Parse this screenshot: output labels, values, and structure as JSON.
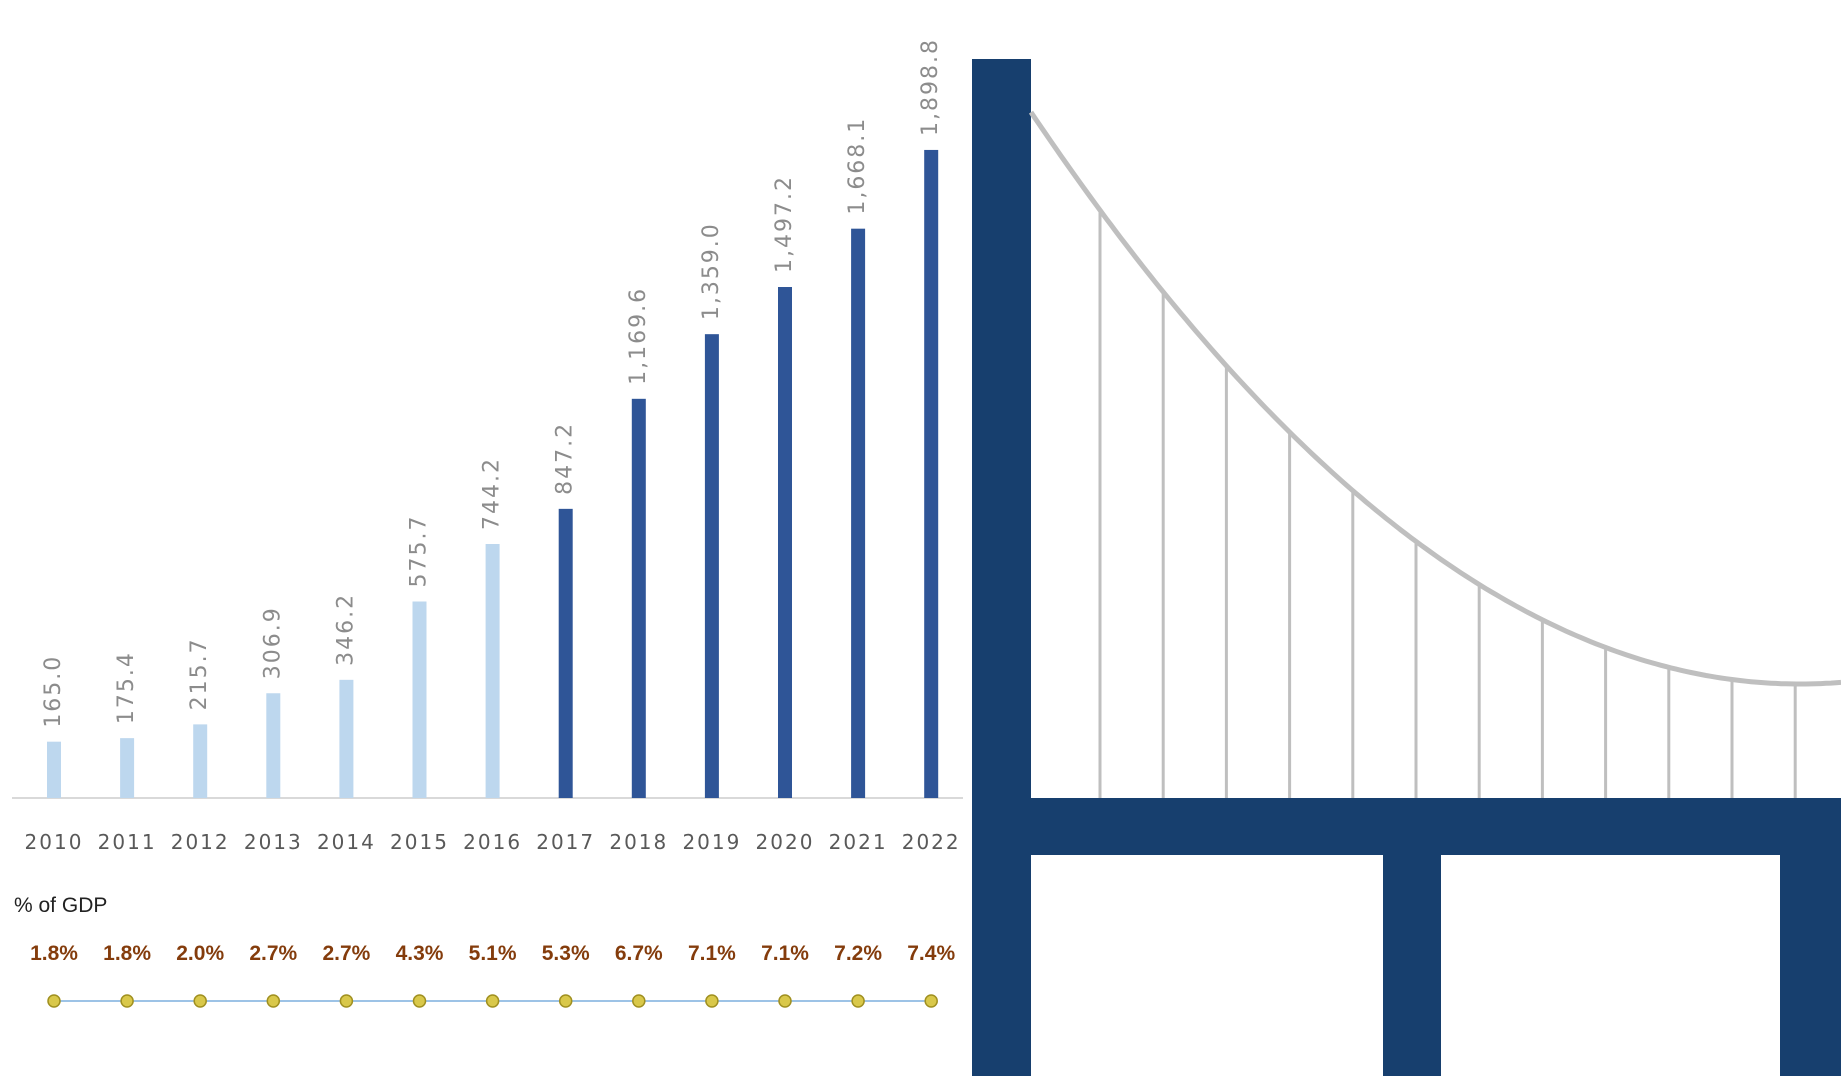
{
  "chart_data": {
    "type": "bar",
    "categories": [
      "2010",
      "2011",
      "2012",
      "2013",
      "2014",
      "2015",
      "2016",
      "2017",
      "2018",
      "2019",
      "2020",
      "2021",
      "2022"
    ],
    "values": [
      165.0,
      175.4,
      215.7,
      306.9,
      346.2,
      575.7,
      744.2,
      847.2,
      1169.6,
      1359.0,
      1497.2,
      1668.1,
      1898.8
    ],
    "value_labels": [
      "165.0",
      "175.4",
      "215.7",
      "306.9",
      "346.2",
      "575.7",
      "744.2",
      "847.2",
      "1,169.6",
      "1,359.0",
      "1,497.2",
      "1,668.1",
      "1,898.8"
    ],
    "colors": [
      "#bdd7ee",
      "#bdd7ee",
      "#bdd7ee",
      "#bdd7ee",
      "#bdd7ee",
      "#bdd7ee",
      "#bdd7ee",
      "#2f5597",
      "#2f5597",
      "#2f5597",
      "#2f5597",
      "#2f5597",
      "#2f5597"
    ]
  },
  "gdp_share": {
    "title": "% of GDP",
    "values": [
      1.8,
      1.8,
      2.0,
      2.7,
      2.7,
      4.3,
      5.1,
      5.3,
      6.7,
      7.1,
      7.1,
      7.2,
      7.4
    ],
    "value_labels": [
      "1.8%",
      "1.8%",
      "2.0%",
      "2.7%",
      "2.7%",
      "4.3%",
      "5.1%",
      "5.3%",
      "6.7%",
      "7.1%",
      "7.1%",
      "7.2%",
      "7.4%"
    ]
  }
}
